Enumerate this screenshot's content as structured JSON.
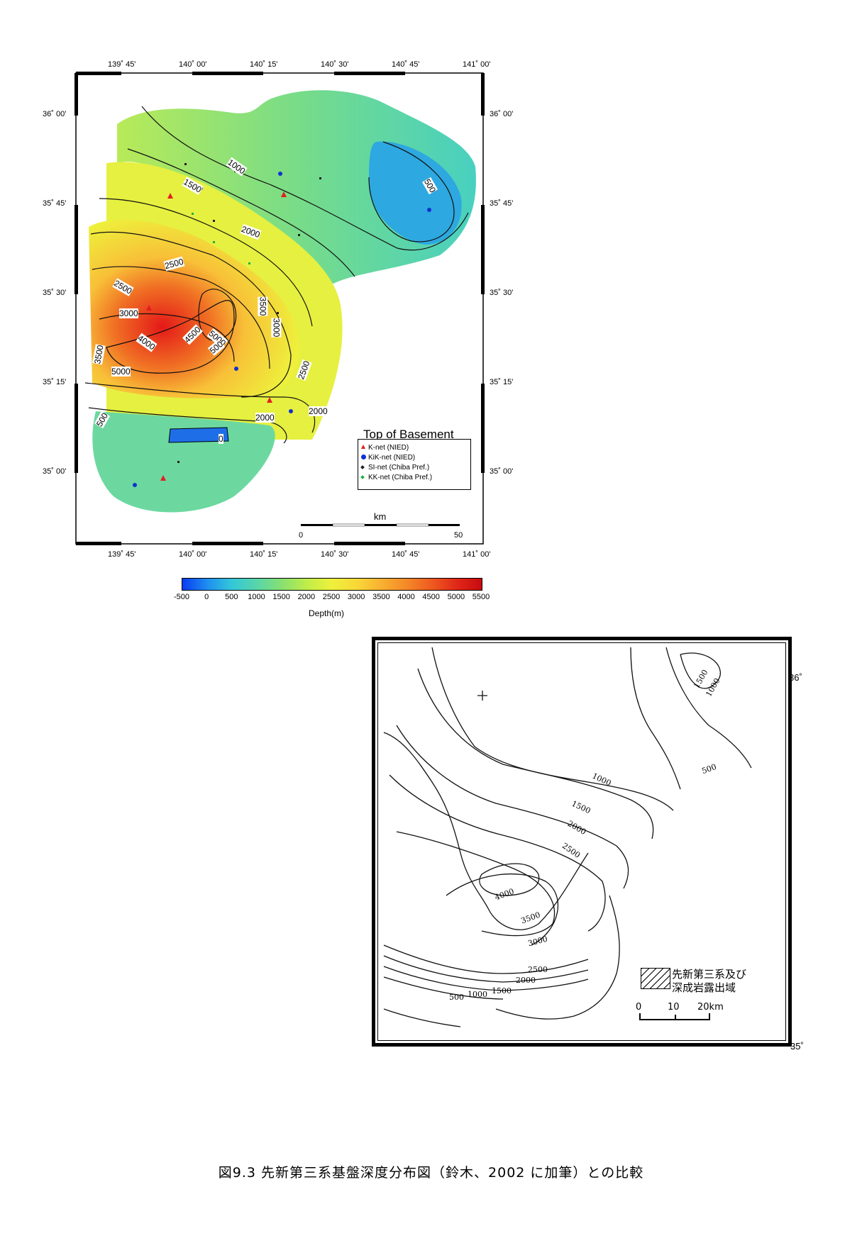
{
  "top_map": {
    "title": "Top of Basement",
    "top_ticks": [
      "139˚ 45'",
      "140˚ 00'",
      "140˚ 15'",
      "140˚ 30'",
      "140˚ 45'",
      "141˚ 00'"
    ],
    "bottom_ticks": [
      "139˚ 45'",
      "140˚ 00'",
      "140˚ 15'",
      "140˚ 30'",
      "140˚ 45'",
      "141˚ 00'"
    ],
    "left_ticks": [
      "36˚ 00'",
      "35˚ 45'",
      "35˚ 30'",
      "35˚ 15'",
      "35˚ 00'"
    ],
    "right_ticks": [
      "36˚ 00'",
      "35˚ 45'",
      "35˚ 30'",
      "35˚ 15'",
      "35˚ 00'"
    ],
    "contour_labels": [
      "500",
      "1000",
      "1500",
      "2000",
      "2500",
      "2500",
      "3000",
      "3500",
      "3500",
      "4000",
      "4500",
      "5000",
      "5000",
      "2500",
      "2000",
      "500",
      "0",
      "500",
      "3000",
      "2000"
    ],
    "legend": [
      {
        "label": "K-net (NIED)",
        "color": "#e02020",
        "shape": "triangle"
      },
      {
        "label": "KiK-net (NIED)",
        "color": "#1030d0",
        "shape": "circle"
      },
      {
        "label": "SI-net (Chiba Pref.)",
        "color": "#202020",
        "shape": "diamond"
      },
      {
        "label": "KK-net (Chiba Pref.)",
        "color": "#20b040",
        "shape": "diamond"
      }
    ],
    "scale": {
      "unit": "km",
      "start": "0",
      "end": "50"
    }
  },
  "colorbar": {
    "ticks": [
      "-500",
      "0",
      "500",
      "1000",
      "1500",
      "2000",
      "2500",
      "3000",
      "3500",
      "4000",
      "4500",
      "5000",
      "5500"
    ],
    "label": "Depth(m)",
    "colors": [
      "#0a3cf0",
      "#1e8ef0",
      "#34c8d8",
      "#58d6a8",
      "#88e070",
      "#c0ee48",
      "#eef03c",
      "#f8d838",
      "#f8b030",
      "#f48828",
      "#ee5a20",
      "#e02818",
      "#c80a10"
    ]
  },
  "bottom_map": {
    "lat_labels": [
      "36˚",
      "35˚"
    ],
    "contour_labels": [
      "1500",
      "1000",
      "500",
      "1000",
      "1500",
      "2000",
      "2500",
      "4000",
      "3500",
      "3000",
      "2500",
      "2000",
      "1500",
      "1000",
      "500"
    ],
    "legend_text": [
      "先新第三系及び",
      "深成岩露出域"
    ],
    "scale": {
      "start": "0",
      "mid": "10",
      "end": "20km"
    }
  },
  "caption": "図9.3 先新第三系基盤深度分布図（鈴木、2002 に加筆）との比較"
}
